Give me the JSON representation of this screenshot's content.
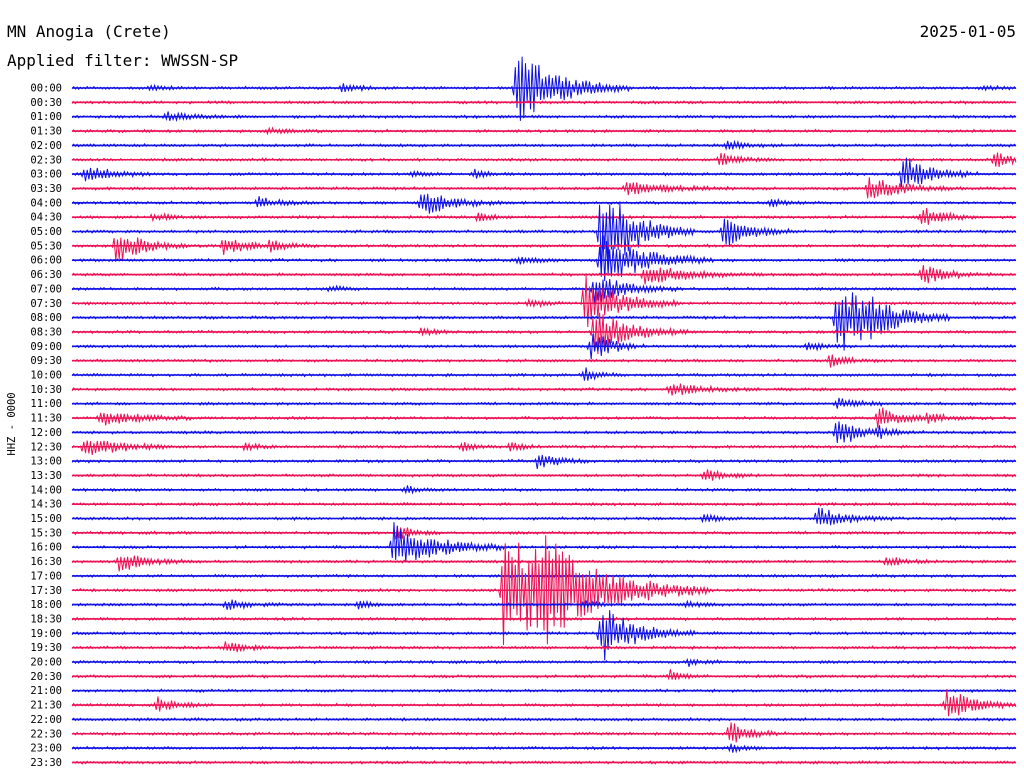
{
  "chart_data": {
    "type": "line",
    "title": "MN Anogia (Crete)",
    "subtitle": "Applied filter: WWSSN-SP",
    "date": "2025-01-05",
    "ylabel": "HHZ - 0000",
    "row_labels": [
      "00:00",
      "00:30",
      "01:00",
      "01:30",
      "02:00",
      "02:30",
      "03:00",
      "03:30",
      "04:00",
      "04:30",
      "05:00",
      "05:30",
      "06:00",
      "06:30",
      "07:00",
      "07:30",
      "08:00",
      "08:30",
      "09:00",
      "09:30",
      "10:00",
      "10:30",
      "11:00",
      "11:30",
      "12:00",
      "12:30",
      "13:00",
      "13:30",
      "14:00",
      "14:30",
      "15:00",
      "15:30",
      "16:00",
      "16:30",
      "17:00",
      "17:30",
      "18:00",
      "18:30",
      "19:00",
      "19:30",
      "20:00",
      "20:30",
      "21:00",
      "21:30",
      "22:00",
      "22:30",
      "23:00",
      "23:30"
    ],
    "colors": {
      "even_rows": "#1010e8",
      "odd_rows": "#ee1155"
    },
    "noise_amplitude": 1.6,
    "events": [
      {
        "row": 0,
        "minute": 14.1,
        "amplitude": 40,
        "duration": 1.2
      },
      {
        "row": 0,
        "minute": 8.6,
        "amplitude": 4,
        "duration": 0.6
      },
      {
        "row": 0,
        "minute": 2.5,
        "amplitude": 2,
        "duration": 0.5
      },
      {
        "row": 0,
        "minute": 29.0,
        "amplitude": 2,
        "duration": 0.5
      },
      {
        "row": 2,
        "minute": 3.0,
        "amplitude": 4,
        "duration": 0.8
      },
      {
        "row": 3,
        "minute": 6.2,
        "amplitude": 3,
        "duration": 0.6
      },
      {
        "row": 4,
        "minute": 20.8,
        "amplitude": 4,
        "duration": 0.7
      },
      {
        "row": 5,
        "minute": 29.3,
        "amplitude": 8,
        "duration": 0.6
      },
      {
        "row": 5,
        "minute": 20.6,
        "amplitude": 6,
        "duration": 0.6
      },
      {
        "row": 6,
        "minute": 0.4,
        "amplitude": 10,
        "duration": 0.8
      },
      {
        "row": 6,
        "minute": 26.4,
        "amplitude": 20,
        "duration": 0.8
      },
      {
        "row": 6,
        "minute": 10.8,
        "amplitude": 4,
        "duration": 0.4
      },
      {
        "row": 6,
        "minute": 12.8,
        "amplitude": 4,
        "duration": 0.4
      },
      {
        "row": 7,
        "minute": 17.6,
        "amplitude": 7,
        "duration": 1.2
      },
      {
        "row": 7,
        "minute": 25.3,
        "amplitude": 12,
        "duration": 1.0
      },
      {
        "row": 8,
        "minute": 11.1,
        "amplitude": 14,
        "duration": 0.9
      },
      {
        "row": 8,
        "minute": 5.9,
        "amplitude": 6,
        "duration": 0.6
      },
      {
        "row": 8,
        "minute": 22.2,
        "amplitude": 4,
        "duration": 0.4
      },
      {
        "row": 9,
        "minute": 2.6,
        "amplitude": 4,
        "duration": 0.5
      },
      {
        "row": 9,
        "minute": 12.9,
        "amplitude": 5,
        "duration": 0.4
      },
      {
        "row": 9,
        "minute": 27.0,
        "amplitude": 12,
        "duration": 0.6
      },
      {
        "row": 10,
        "minute": 20.7,
        "amplitude": 16,
        "duration": 0.8
      },
      {
        "row": 10,
        "minute": 16.8,
        "amplitude": 50,
        "duration": 1.0
      },
      {
        "row": 11,
        "minute": 1.4,
        "amplitude": 18,
        "duration": 0.8
      },
      {
        "row": 11,
        "minute": 4.8,
        "amplitude": 8,
        "duration": 0.8
      },
      {
        "row": 11,
        "minute": 6.3,
        "amplitude": 5,
        "duration": 0.6
      },
      {
        "row": 12,
        "minute": 14.2,
        "amplitude": 4,
        "duration": 0.5
      },
      {
        "row": 12,
        "minute": 16.8,
        "amplitude": 30,
        "duration": 1.2
      },
      {
        "row": 13,
        "minute": 18.2,
        "amplitude": 10,
        "duration": 1.3
      },
      {
        "row": 13,
        "minute": 27.0,
        "amplitude": 10,
        "duration": 0.8
      },
      {
        "row": 14,
        "minute": 16.6,
        "amplitude": 16,
        "duration": 0.9
      },
      {
        "row": 14,
        "minute": 8.2,
        "amplitude": 3,
        "duration": 0.4
      },
      {
        "row": 15,
        "minute": 14.5,
        "amplitude": 5,
        "duration": 0.4
      },
      {
        "row": 15,
        "minute": 16.3,
        "amplitude": 30,
        "duration": 1.0
      },
      {
        "row": 16,
        "minute": 24.3,
        "amplitude": 40,
        "duration": 1.2
      },
      {
        "row": 16,
        "minute": 25.1,
        "amplitude": 8,
        "duration": 0.8
      },
      {
        "row": 17,
        "minute": 11.1,
        "amplitude": 4,
        "duration": 0.4
      },
      {
        "row": 17,
        "minute": 16.6,
        "amplitude": 24,
        "duration": 1.0
      },
      {
        "row": 18,
        "minute": 16.5,
        "amplitude": 16,
        "duration": 0.6
      },
      {
        "row": 18,
        "minute": 23.4,
        "amplitude": 5,
        "duration": 0.5
      },
      {
        "row": 19,
        "minute": 24.1,
        "amplitude": 6,
        "duration": 0.5
      },
      {
        "row": 20,
        "minute": 16.3,
        "amplitude": 8,
        "duration": 0.4
      },
      {
        "row": 21,
        "minute": 19.0,
        "amplitude": 7,
        "duration": 0.9
      },
      {
        "row": 22,
        "minute": 24.3,
        "amplitude": 6,
        "duration": 0.6
      },
      {
        "row": 23,
        "minute": 0.9,
        "amplitude": 9,
        "duration": 1.0
      },
      {
        "row": 23,
        "minute": 25.6,
        "amplitude": 12,
        "duration": 0.7
      },
      {
        "row": 23,
        "minute": 27.2,
        "amplitude": 4,
        "duration": 0.6
      },
      {
        "row": 24,
        "minute": 25.6,
        "amplitude": 6,
        "duration": 0.5
      },
      {
        "row": 24,
        "minute": 24.3,
        "amplitude": 20,
        "duration": 0.5
      },
      {
        "row": 25,
        "minute": 0.4,
        "amplitude": 12,
        "duration": 1.0
      },
      {
        "row": 25,
        "minute": 5.5,
        "amplitude": 4,
        "duration": 0.4
      },
      {
        "row": 25,
        "minute": 12.4,
        "amplitude": 4,
        "duration": 0.4
      },
      {
        "row": 25,
        "minute": 13.9,
        "amplitude": 4,
        "duration": 0.4
      },
      {
        "row": 26,
        "minute": 14.8,
        "amplitude": 8,
        "duration": 0.6
      },
      {
        "row": 27,
        "minute": 20.1,
        "amplitude": 6,
        "duration": 0.6
      },
      {
        "row": 28,
        "minute": 10.6,
        "amplitude": 4,
        "duration": 0.4
      },
      {
        "row": 30,
        "minute": 20.1,
        "amplitude": 4,
        "duration": 0.4
      },
      {
        "row": 30,
        "minute": 23.7,
        "amplitude": 12,
        "duration": 0.8
      },
      {
        "row": 31,
        "minute": 10.3,
        "amplitude": 8,
        "duration": 0.5
      },
      {
        "row": 32,
        "minute": 10.2,
        "amplitude": 26,
        "duration": 1.2
      },
      {
        "row": 33,
        "minute": 1.5,
        "amplitude": 10,
        "duration": 0.8
      },
      {
        "row": 33,
        "minute": 25.9,
        "amplitude": 5,
        "duration": 0.6
      },
      {
        "row": 35,
        "minute": 13.7,
        "amplitude": 60,
        "duration": 2.2
      },
      {
        "row": 35,
        "minute": 14.8,
        "amplitude": 30,
        "duration": 1.2
      },
      {
        "row": 36,
        "minute": 4.9,
        "amplitude": 6,
        "duration": 0.6
      },
      {
        "row": 36,
        "minute": 9.1,
        "amplitude": 4,
        "duration": 0.4
      },
      {
        "row": 36,
        "minute": 16.3,
        "amplitude": 4,
        "duration": 0.4
      },
      {
        "row": 36,
        "minute": 19.5,
        "amplitude": 4,
        "duration": 0.4
      },
      {
        "row": 38,
        "minute": 16.8,
        "amplitude": 30,
        "duration": 1.0
      },
      {
        "row": 39,
        "minute": 4.9,
        "amplitude": 6,
        "duration": 0.6
      },
      {
        "row": 40,
        "minute": 19.6,
        "amplitude": 4,
        "duration": 0.4
      },
      {
        "row": 41,
        "minute": 19.0,
        "amplitude": 6,
        "duration": 0.4
      },
      {
        "row": 43,
        "minute": 2.7,
        "amplitude": 8,
        "duration": 0.6
      },
      {
        "row": 43,
        "minute": 27.8,
        "amplitude": 16,
        "duration": 0.8
      },
      {
        "row": 45,
        "minute": 20.9,
        "amplitude": 12,
        "duration": 0.6
      },
      {
        "row": 46,
        "minute": 20.9,
        "amplitude": 4,
        "duration": 0.4
      }
    ]
  }
}
